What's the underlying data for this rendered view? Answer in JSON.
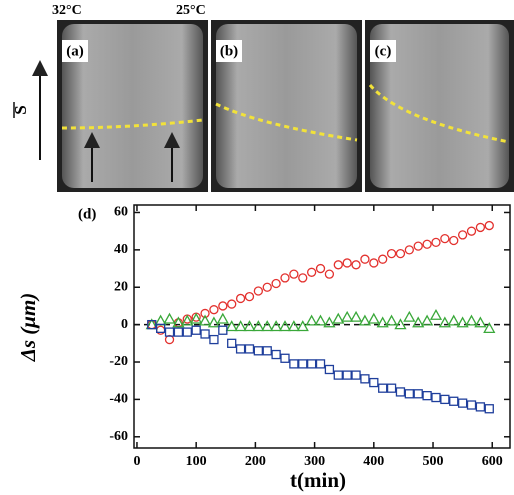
{
  "images": {
    "labels": [
      "(a)",
      "(b)",
      "(c)"
    ],
    "temperatures": [
      "32°C",
      "25°C"
    ],
    "direction_label": "S"
  },
  "chart_data": {
    "type": "scatter",
    "panel_label": "(d)",
    "x_label": "t(min)",
    "y_label": "Δs (μm)",
    "x": [
      25,
      40,
      55,
      70,
      85,
      100,
      115,
      130,
      145,
      160,
      175,
      190,
      205,
      220,
      235,
      250,
      265,
      280,
      295,
      310,
      325,
      340,
      355,
      370,
      385,
      400,
      415,
      430,
      445,
      460,
      475,
      490,
      505,
      520,
      535,
      550,
      565,
      580,
      595
    ],
    "series": [
      {
        "color": "#e3312e",
        "marker": "circle",
        "values": [
          0,
          -3,
          -8,
          1,
          3,
          4,
          6,
          8,
          10,
          11,
          14,
          15,
          18,
          20,
          22,
          25,
          27,
          25,
          28,
          30,
          27,
          32,
          33,
          32,
          35,
          33,
          35,
          38,
          38,
          40,
          42,
          43,
          44,
          46,
          45,
          48,
          50,
          52,
          53
        ]
      },
      {
        "color": "#3aa83a",
        "marker": "triangle",
        "values": [
          0,
          2,
          3,
          1,
          2,
          3,
          2,
          1,
          3,
          -1,
          -1,
          -1,
          -1,
          -1,
          -1,
          -1,
          -1,
          -1,
          2,
          2,
          1,
          3,
          4,
          4,
          2,
          3,
          1,
          2,
          0,
          4,
          1,
          2,
          5,
          1,
          2,
          1,
          2,
          1,
          -2
        ]
      },
      {
        "color": "#1f3f9c",
        "marker": "square",
        "values": [
          0,
          -2,
          -4,
          -4,
          -4,
          -3,
          -5,
          -8,
          -3,
          -10,
          -13,
          -13,
          -14,
          -14,
          -16,
          -18,
          -21,
          -21,
          -21,
          -21,
          -24,
          -27,
          -27,
          -27,
          -29,
          -31,
          -34,
          -34,
          -36,
          -37,
          -37,
          -38,
          -39,
          -40,
          -41,
          -42,
          -43,
          -44,
          -45
        ]
      }
    ],
    "hline": 0,
    "xlim": [
      -5,
      630
    ],
    "ylim": [
      -66,
      64
    ],
    "xticks": [
      0,
      100,
      200,
      300,
      400,
      500,
      600
    ],
    "yticks": [
      -60,
      -40,
      -20,
      0,
      20,
      40,
      60
    ]
  }
}
